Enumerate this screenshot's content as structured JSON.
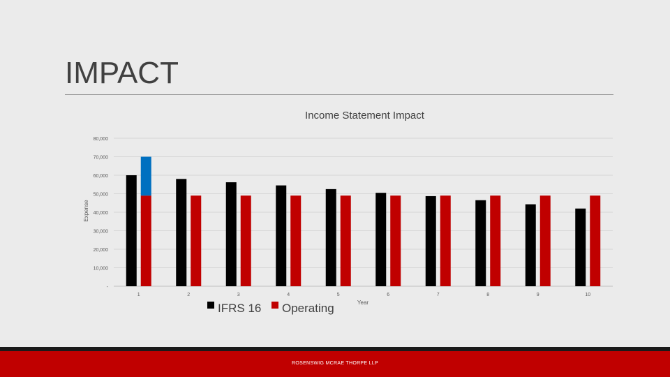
{
  "slide": {
    "title": "IMPACT",
    "footer": "ROSENSWIG MCRAE THORPE LLP"
  },
  "colors": {
    "ifrs16": "#000000",
    "operating": "#c00000",
    "highlight": "#0070c0",
    "footer_bar": "#c00000"
  },
  "chart_data": {
    "type": "bar",
    "title": "Income Statement Impact",
    "xlabel": "Year",
    "ylabel": "Expense",
    "categories": [
      "1",
      "2",
      "3",
      "4",
      "5",
      "6",
      "7",
      "8",
      "9",
      "10"
    ],
    "series": [
      {
        "name": "IFRS 16",
        "values": [
          60000,
          58000,
          56200,
          54500,
          52500,
          50500,
          48700,
          46500,
          44300,
          42000
        ]
      },
      {
        "name": "Operating",
        "values": [
          49000,
          49000,
          49000,
          49000,
          49000,
          49000,
          49000,
          49000,
          49000,
          49000
        ]
      }
    ],
    "annotation": {
      "category": "1",
      "from": 49000,
      "to": 70000,
      "color": "#0070c0"
    },
    "ylim": [
      0,
      80000
    ],
    "yticks": [
      0,
      10000,
      20000,
      30000,
      40000,
      50000,
      60000,
      70000,
      80000
    ],
    "ytick_labels": [
      "-",
      "10,000",
      "20,000",
      "30,000",
      "40,000",
      "50,000",
      "60,000",
      "70,000",
      "80,000"
    ],
    "grid": true,
    "legend_position": "bottom"
  }
}
